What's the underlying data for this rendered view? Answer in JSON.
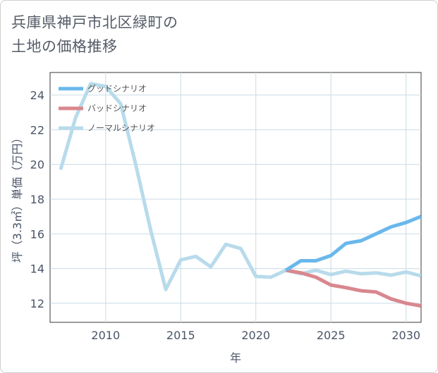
{
  "title": {
    "line1": "兵庫県神戸市北区緑町の",
    "line2": "土地の価格推移"
  },
  "chart_data": {
    "type": "line",
    "xlabel": "年",
    "ylabel": "坪（3.3㎡）単価（万円）",
    "xlim": [
      2006.3,
      2031
    ],
    "ylim": [
      10.9,
      25.3
    ],
    "xticks": [
      2010,
      2015,
      2020,
      2025,
      2030
    ],
    "yticks": [
      12,
      14,
      16,
      18,
      20,
      22,
      24
    ],
    "grid": true,
    "legend_position": "top-left",
    "series": [
      {
        "name": "グッドシナリオ",
        "color": "#6ab8ec",
        "x": [
          2022,
          2023,
          2024,
          2025,
          2026,
          2027,
          2028,
          2029,
          2030,
          2031
        ],
        "y": [
          13.9,
          14.45,
          14.45,
          14.75,
          15.45,
          15.6,
          16.0,
          16.4,
          16.65,
          17.0
        ]
      },
      {
        "name": "バッドシナリオ",
        "color": "#d9878e",
        "x": [
          2022,
          2023,
          2024,
          2025,
          2026,
          2027,
          2028,
          2029,
          2030,
          2031
        ],
        "y": [
          13.9,
          13.75,
          13.5,
          13.05,
          12.9,
          12.72,
          12.65,
          12.25,
          12.0,
          11.85
        ]
      },
      {
        "name": "ノーマルシナリオ",
        "color": "#b8dbeb",
        "x": [
          2007,
          2008,
          2009,
          2010,
          2011,
          2012,
          2013,
          2014,
          2015,
          2016,
          2017,
          2018,
          2019,
          2020,
          2021,
          2022,
          2023,
          2024,
          2025,
          2026,
          2027,
          2028,
          2029,
          2030,
          2031
        ],
        "y": [
          19.7,
          22.7,
          24.65,
          24.5,
          23.5,
          20.0,
          16.2,
          12.8,
          14.5,
          14.7,
          14.1,
          15.4,
          15.15,
          13.55,
          13.5,
          13.9,
          13.7,
          13.9,
          13.65,
          13.85,
          13.7,
          13.75,
          13.62,
          13.8,
          13.58
        ]
      }
    ]
  }
}
